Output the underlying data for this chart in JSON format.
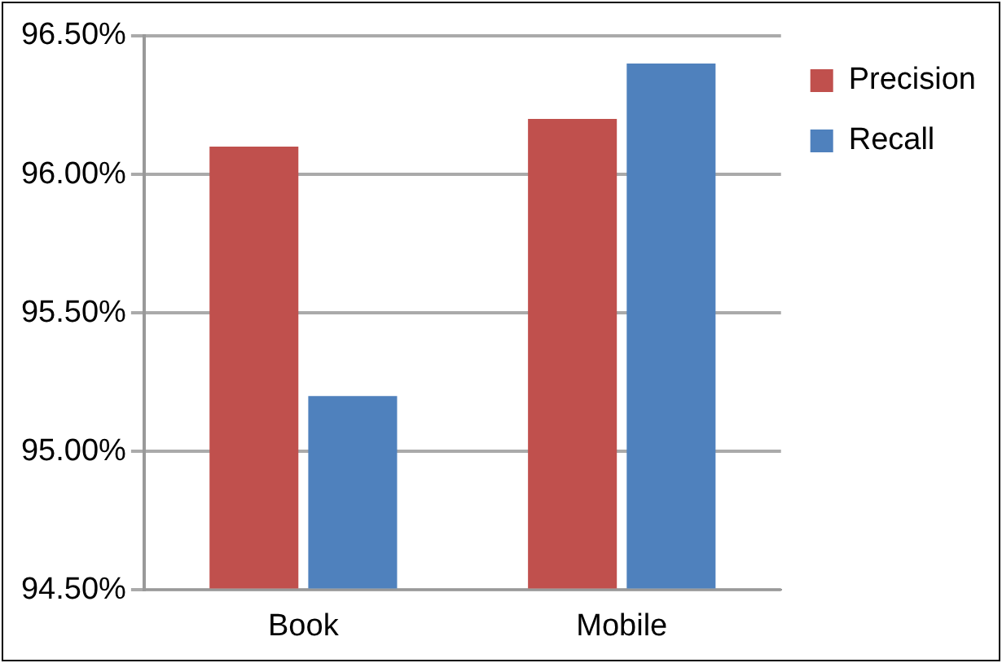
{
  "chart_data": {
    "type": "bar",
    "categories": [
      "Book",
      "Mobile"
    ],
    "series": [
      {
        "name": "Precision",
        "color": "#c0504d",
        "values": [
          96.1,
          96.2
        ]
      },
      {
        "name": "Recall",
        "color": "#4f81bd",
        "values": [
          95.2,
          96.4
        ]
      }
    ],
    "ylim": [
      94.5,
      96.5
    ],
    "yticks": [
      {
        "value": 94.5,
        "label": "94.50%"
      },
      {
        "value": 95,
        "label": "95.00%"
      },
      {
        "value": 95.5,
        "label": "95.50%"
      },
      {
        "value": 96,
        "label": "96.00%"
      },
      {
        "value": 96.5,
        "label": "96.50%"
      }
    ],
    "grid": "y",
    "legend": "top right"
  }
}
